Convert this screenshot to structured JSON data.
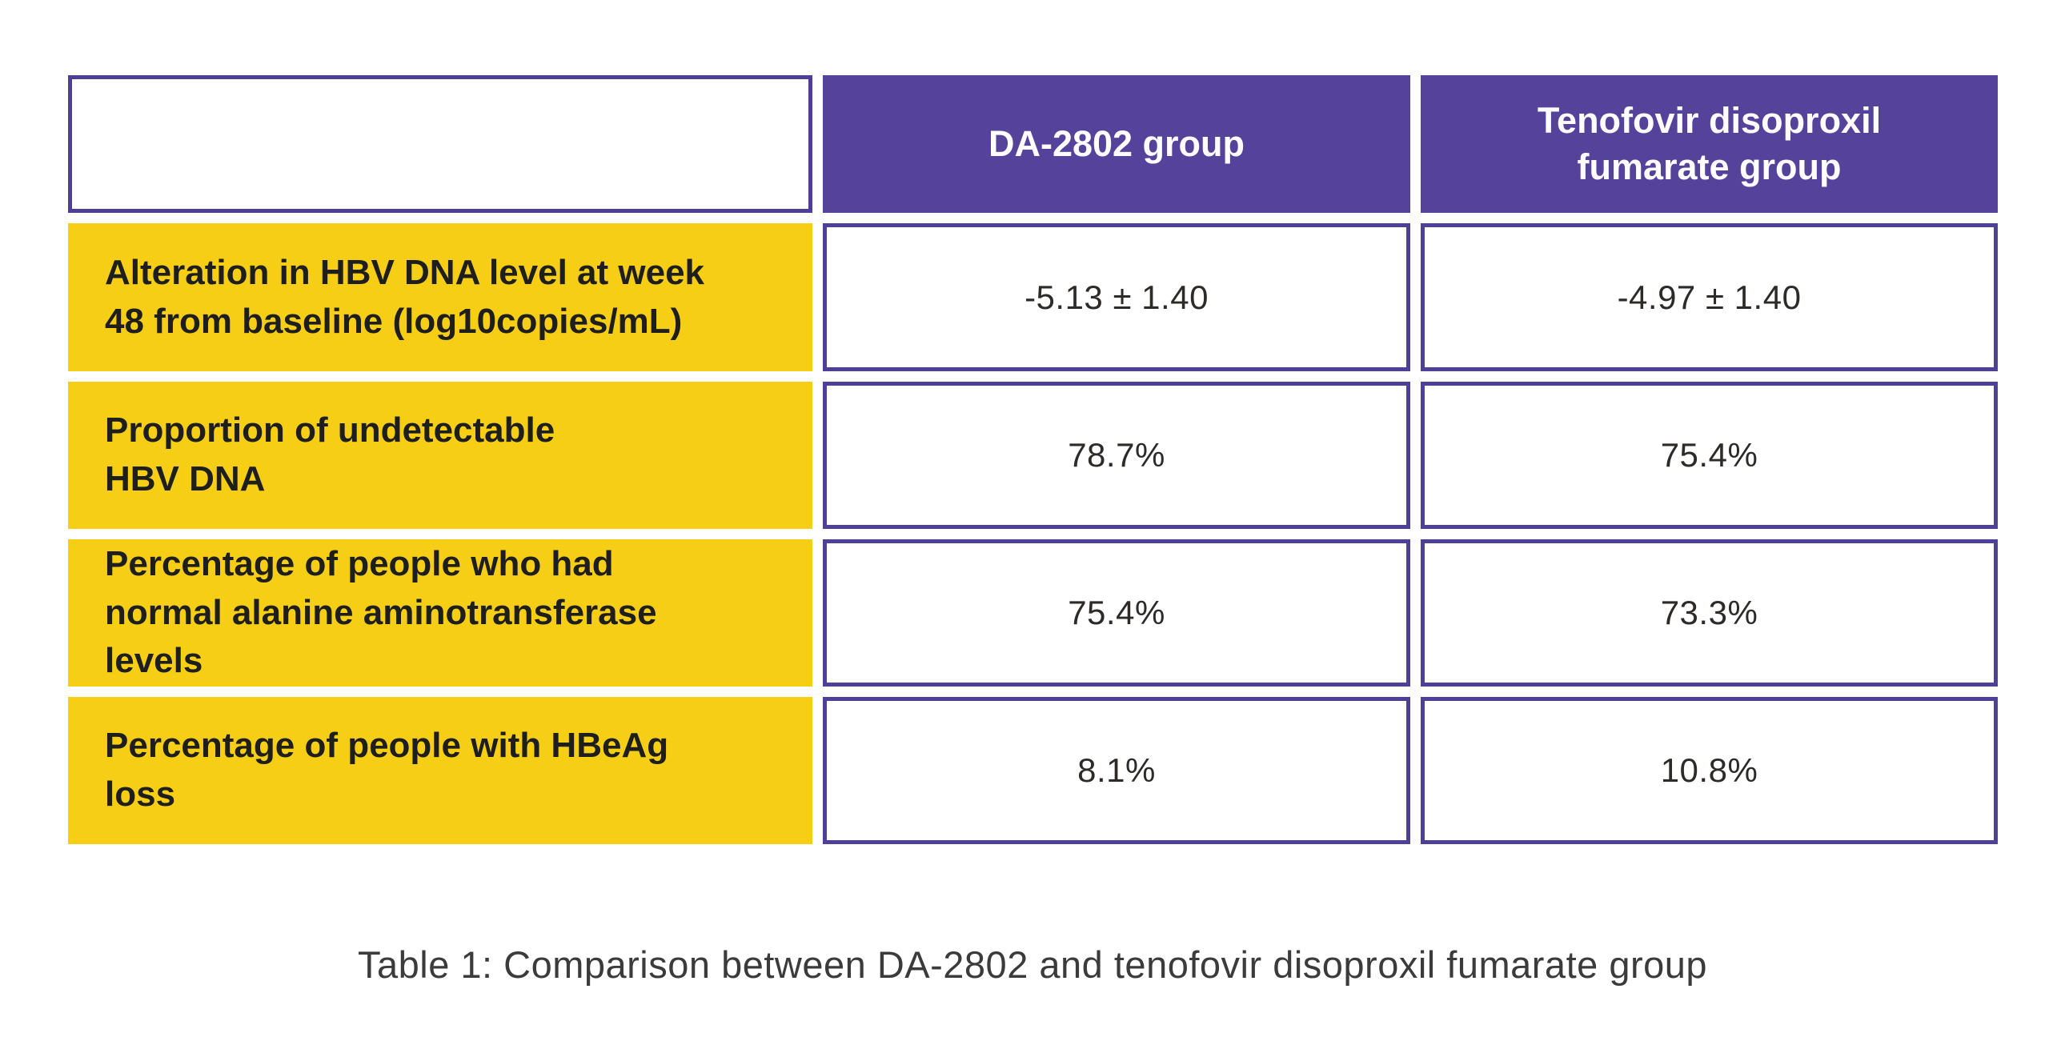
{
  "colors": {
    "header_purple": "#55439b",
    "border_purple": "#4e4096",
    "label_yellow": "#f6ce16",
    "header_text": "#fdfcfe",
    "label_text": "#1e1e1c",
    "value_text": "#2d2b29",
    "background": "#ffffff"
  },
  "table": {
    "header": {
      "col_empty": "",
      "col_da2802": "DA-2802 group",
      "col_tdf": "Tenofovir disoproxil\nfumarate group"
    },
    "rows": [
      {
        "label": "Alteration in HBV DNA level at week\n48  from baseline  (log10copies/mL)",
        "da2802": "-5.13 ± 1.40",
        "tdf": "-4.97 ± 1.40"
      },
      {
        "label": "Proportion of undetectable\nHBV DNA",
        "da2802": "78.7%",
        "tdf": "75.4%"
      },
      {
        "label": "Percentage of people who had\nnormal alanine aminotransferase\nlevels",
        "da2802": "75.4%",
        "tdf": "73.3%"
      },
      {
        "label": "Percentage of people with HBeAg\nloss",
        "da2802": "8.1%",
        "tdf": "10.8%"
      }
    ]
  },
  "caption": "Table 1: Comparison between DA-2802 and tenofovir disoproxil fumarate group",
  "chart_data": {
    "type": "table",
    "title": "Table 1: Comparison between DA-2802 and tenofovir disoproxil fumarate group",
    "columns": [
      "",
      "DA-2802 group",
      "Tenofovir disoproxil fumarate group"
    ],
    "rows": [
      [
        "Alteration in HBV DNA level at week 48 from baseline (log10copies/mL)",
        "-5.13 ± 1.40",
        "-4.97 ± 1.40"
      ],
      [
        "Proportion of undetectable HBV DNA",
        "78.7%",
        "75.4%"
      ],
      [
        "Percentage of people who had normal alanine aminotransferase levels",
        "75.4%",
        "73.3%"
      ],
      [
        "Percentage of people with HBeAg loss",
        "8.1%",
        "10.8%"
      ]
    ]
  }
}
